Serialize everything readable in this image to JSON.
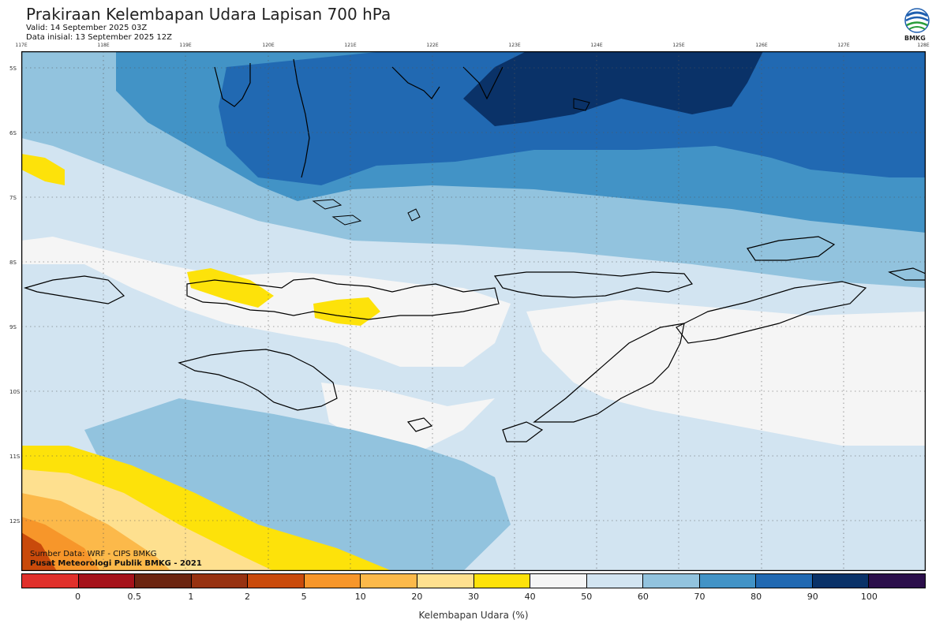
{
  "header": {
    "title": "Prakiraan Kelembapan Udara Lapisan 700 hPa",
    "valid": "Valid: 14 September 2025 03Z",
    "init": "Data inisial: 13 September 2025 12Z",
    "logo_text": "BMKG"
  },
  "map": {
    "lon_ticks": [
      "117E",
      "118E",
      "119E",
      "120E",
      "121E",
      "122E",
      "123E",
      "124E",
      "125E",
      "126E",
      "127E",
      "128E"
    ],
    "lat_ticks": [
      "5S",
      "6S",
      "7S",
      "8S",
      "9S",
      "10S",
      "11S",
      "12S"
    ],
    "credit_source": "Sumber Data: WRF - CIPS BMKG",
    "credit_org": "Pusat Meteorologi Publik BMKG - 2021"
  },
  "legend": {
    "title": "Kelembapan Udara (%)",
    "labels": [
      "0",
      "0.5",
      "1",
      "2",
      "5",
      "10",
      "20",
      "30",
      "40",
      "50",
      "60",
      "70",
      "80",
      "90",
      "100"
    ],
    "colors": [
      "#e0302b",
      "#a5121a",
      "#6b2410",
      "#973211",
      "#c94a0b",
      "#f7962a",
      "#fcb94a",
      "#fee08f",
      "#fde20a",
      "#f5f5f5",
      "#d2e4f1",
      "#92c3de",
      "#4293c6",
      "#2169b2",
      "#0a3268",
      "#2b0e4a"
    ]
  }
}
